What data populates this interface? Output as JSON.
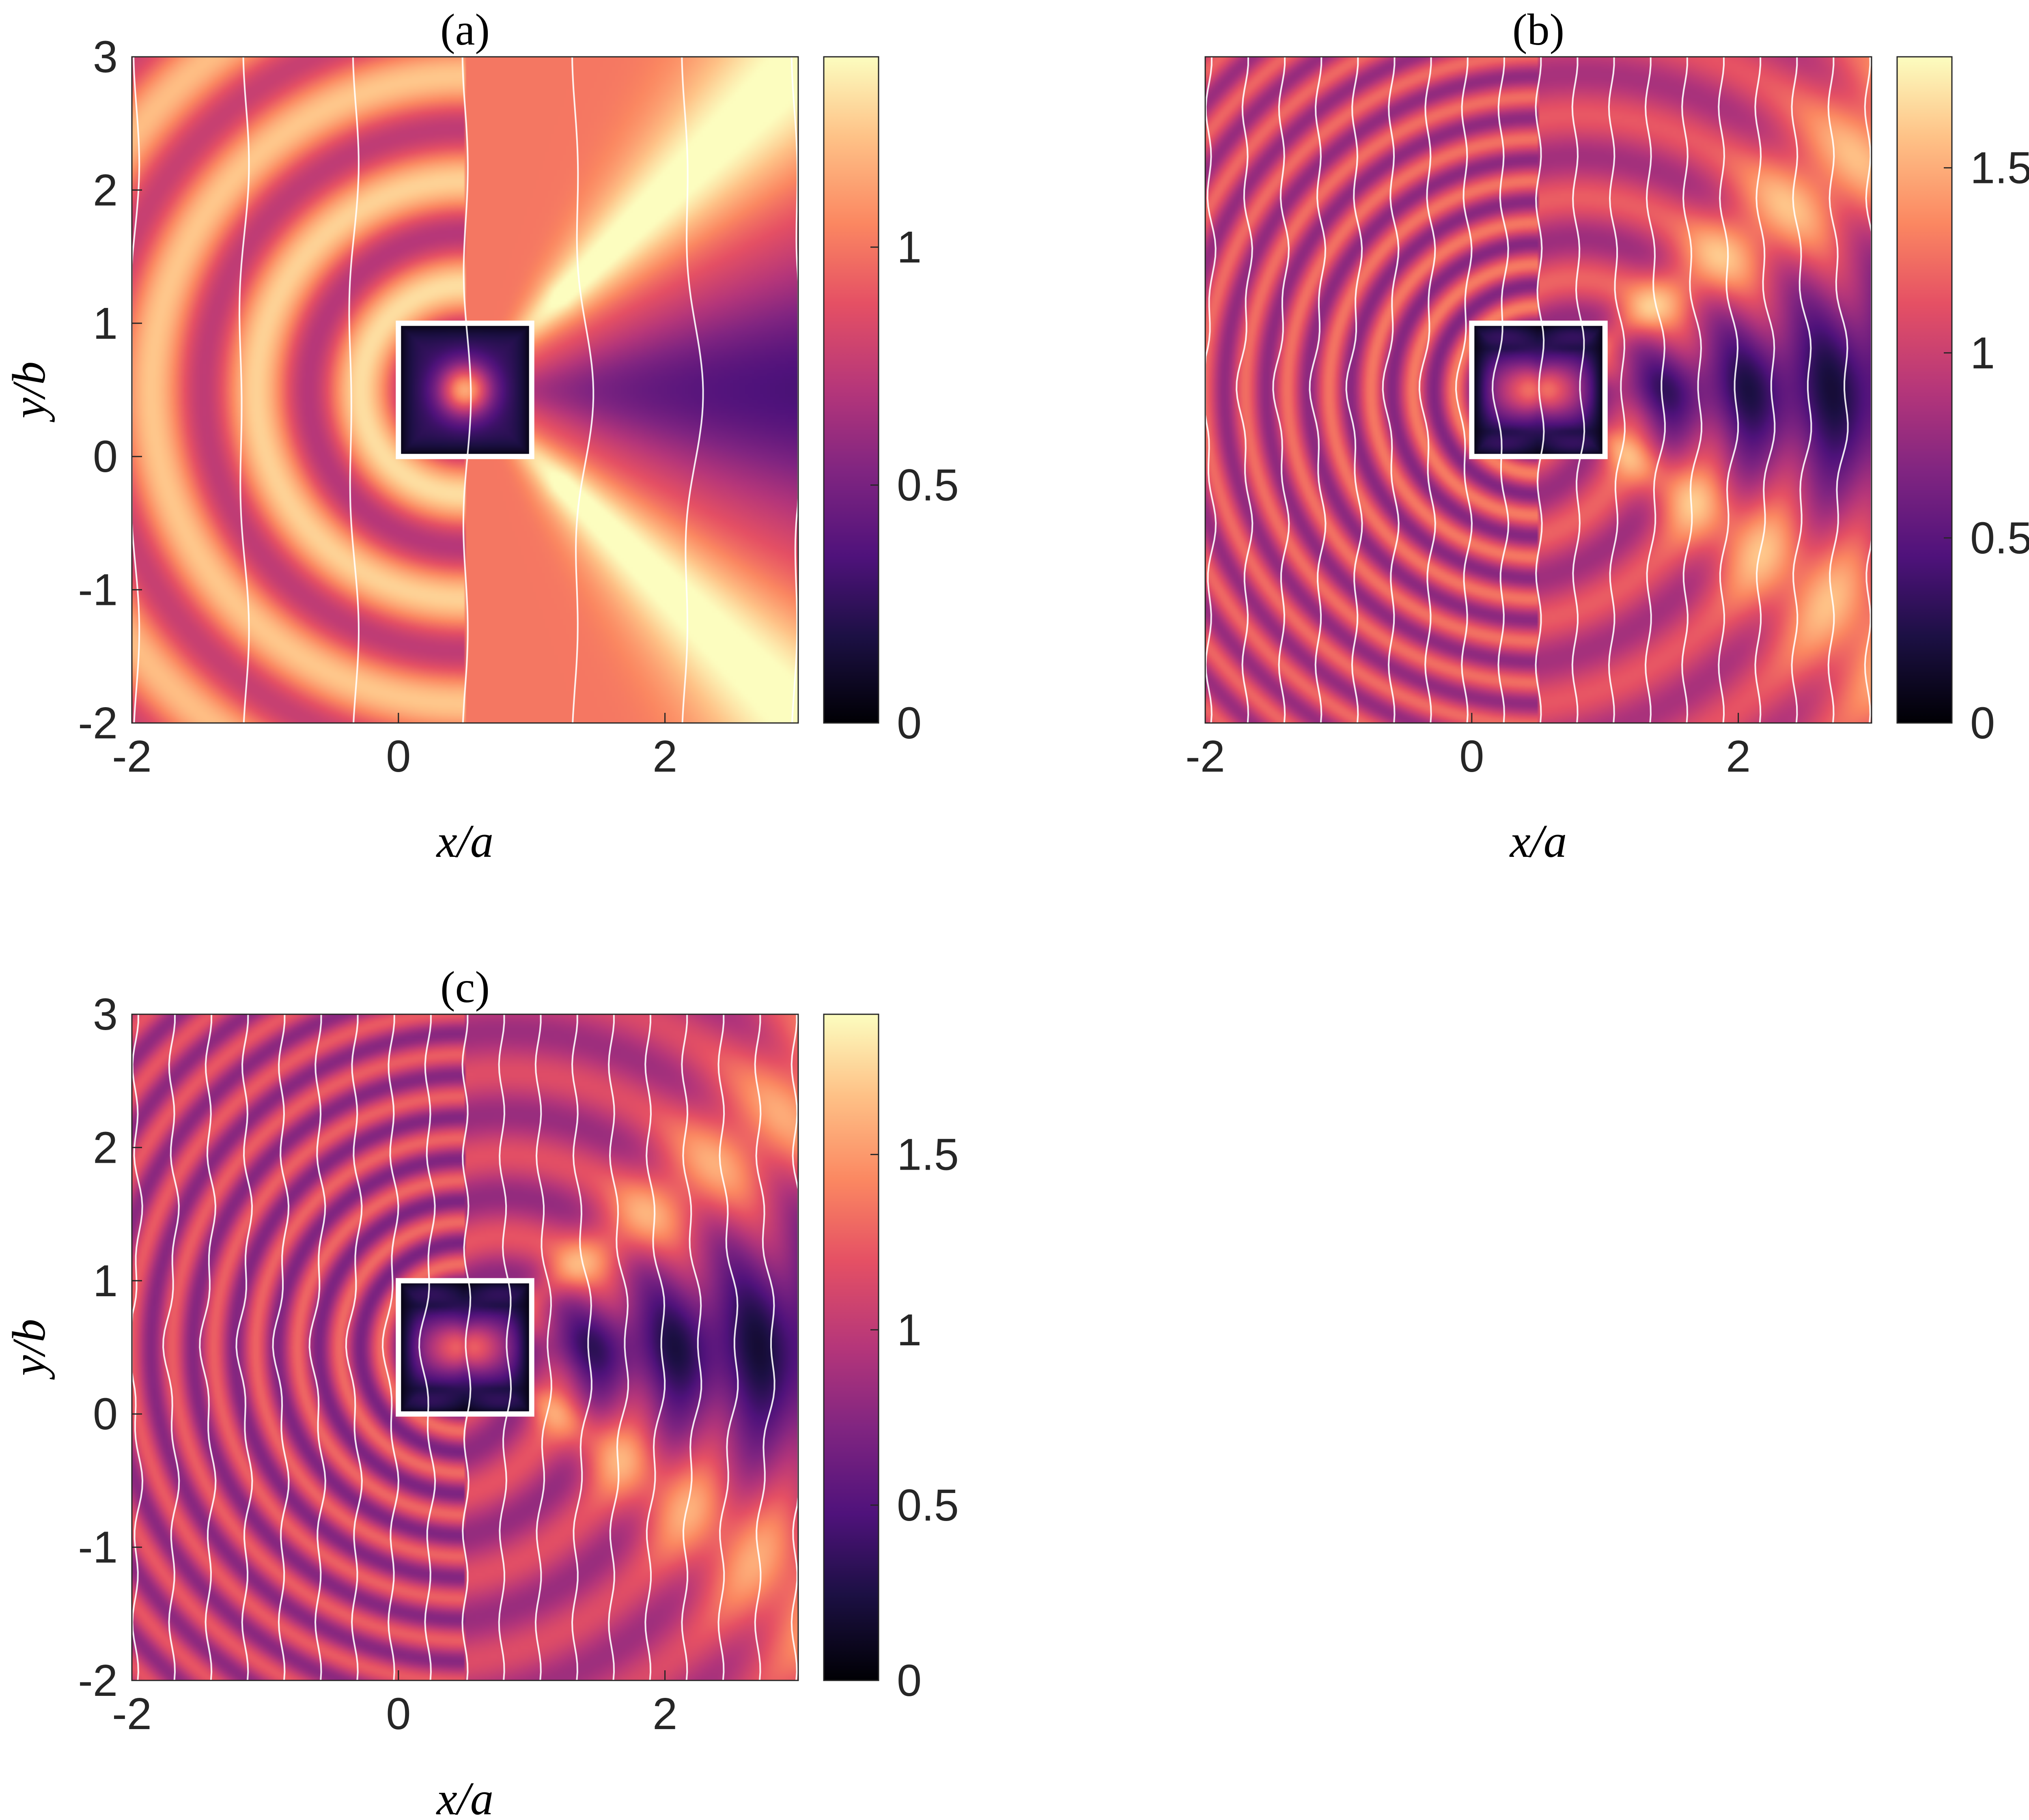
{
  "chart_data": [
    {
      "type": "heatmap",
      "title": "(a)",
      "xlabel": "x/a",
      "ylabel": "y/b",
      "xlim": [
        -2,
        3
      ],
      "ylim": [
        -2,
        3
      ],
      "xticks": [
        "-2",
        "0",
        "2"
      ],
      "xtick_values": [
        -2,
        0,
        2
      ],
      "yticks": [
        "-2",
        "-1",
        "0",
        "1",
        "2",
        "3"
      ],
      "ytick_values": [
        -2,
        -1,
        0,
        1,
        2,
        3
      ],
      "colorbar": {
        "range": [
          0,
          1.4
        ],
        "ticks": [
          "0",
          "0.5",
          "1"
        ],
        "tick_values": [
          0,
          0.5,
          1
        ],
        "colormap": "magma"
      },
      "scatterer_box": {
        "x": [
          0,
          1
        ],
        "y": [
          0,
          1
        ]
      },
      "wavefront_lines": "white phase contours, roughly vertical, about 7 lines across the domain",
      "wave_pattern": {
        "kx": 4,
        "fringe_count_left": 3
      }
    },
    {
      "type": "heatmap",
      "title": "(b)",
      "xlabel": "x/a",
      "ylabel": "",
      "xlim": [
        -2,
        3
      ],
      "ylim": [
        -2,
        3
      ],
      "xticks": [
        "-2",
        "0",
        "2"
      ],
      "xtick_values": [
        -2,
        0,
        2
      ],
      "yticks": [],
      "colorbar": {
        "range": [
          0,
          1.8
        ],
        "ticks": [
          "0",
          "0.5",
          "1",
          "1.5"
        ],
        "tick_values": [
          0,
          0.5,
          1,
          1.5
        ],
        "colormap": "magma"
      },
      "scatterer_box": {
        "x": [
          0,
          1
        ],
        "y": [
          0,
          1
        ]
      },
      "wavefront_lines": "white phase contours, about 19 lines across the domain",
      "wave_pattern": {
        "kx": 10,
        "fringe_count_left": 8
      }
    },
    {
      "type": "heatmap",
      "title": "(c)",
      "xlabel": "x/a",
      "ylabel": "y/b",
      "xlim": [
        -2,
        3
      ],
      "ylim": [
        -2,
        3
      ],
      "xticks": [
        "-2",
        "0",
        "2"
      ],
      "xtick_values": [
        -2,
        0,
        2
      ],
      "yticks": [
        "-2",
        "-1",
        "0",
        "1",
        "2",
        "3"
      ],
      "ytick_values": [
        -2,
        -1,
        0,
        1,
        2,
        3
      ],
      "colorbar": {
        "range": [
          0,
          1.9
        ],
        "ticks": [
          "0",
          "0.5",
          "1",
          "1.5"
        ],
        "tick_values": [
          0,
          0.5,
          1,
          1.5
        ],
        "colormap": "magma"
      },
      "scatterer_box": {
        "x": [
          0,
          1
        ],
        "y": [
          0,
          1
        ]
      },
      "wavefront_lines": "white phase contours, about 19 lines across the domain",
      "wave_pattern": {
        "kx": 10,
        "fringe_count_left": 8
      }
    }
  ]
}
